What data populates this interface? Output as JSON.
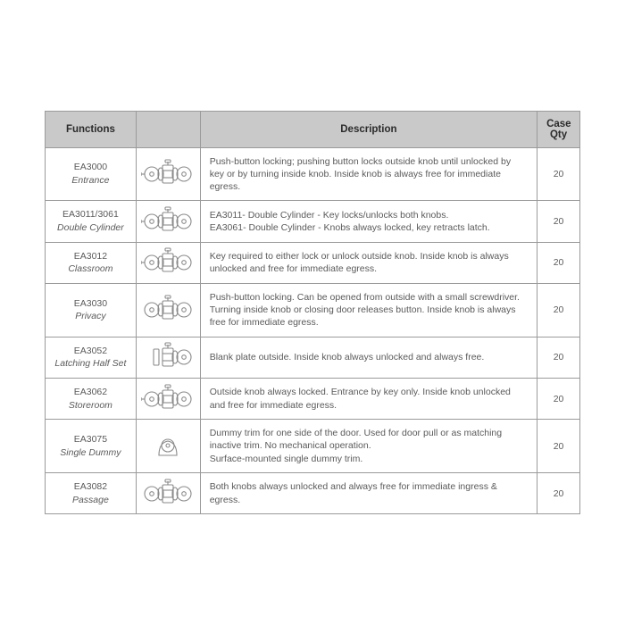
{
  "table": {
    "columns": [
      "Functions",
      "",
      "Description",
      "Case Qty"
    ],
    "col_widths_pct": [
      17,
      12,
      63,
      8
    ],
    "header_bg": "#c9c9c9",
    "header_color": "#2b2b2b",
    "header_fontsize": 11.5,
    "border_color": "#9a9a9a",
    "cell_color": "#5a5a5a",
    "cell_fontsize": 10.5,
    "icon_stroke": "#8a8a8a",
    "rows": [
      {
        "code": "EA3000",
        "name": "Entrance",
        "icon": "double-key",
        "desc": "Push-button locking; pushing button locks outside knob until unlocked by key or by turning inside knob. Inside knob is always free for immediate egress.",
        "qty": "20"
      },
      {
        "code": "EA3011/3061",
        "name": "Double Cylinder",
        "icon": "double-key",
        "desc": "EA3011- Double Cylinder - Key locks/unlocks both knobs.\nEA3061- Double Cylinder - Knobs always locked, key retracts latch.",
        "qty": "20"
      },
      {
        "code": "EA3012",
        "name": "Classroom",
        "icon": "double-key",
        "desc": "Key required to either lock or unlock outside knob. Inside knob is always unlocked and free for immediate egress.",
        "qty": "20"
      },
      {
        "code": "EA3030",
        "name": "Privacy",
        "icon": "double",
        "desc": "Push-button locking. Can be opened from outside with a small screwdriver. Turning inside knob or closing door releases button. Inside knob is always free for immediate egress.",
        "qty": "20"
      },
      {
        "code": "EA3052",
        "name": "Latching Half Set",
        "icon": "half",
        "desc": "Blank plate outside. Inside knob always unlocked and always free.",
        "qty": "20"
      },
      {
        "code": "EA3062",
        "name": "Storeroom",
        "icon": "double-key",
        "desc": "Outside knob always locked. Entrance by key only. Inside knob unlocked and free for immediate egress.",
        "qty": "20"
      },
      {
        "code": "EA3075",
        "name": "Single Dummy",
        "icon": "single",
        "desc": "Dummy trim for one side of the door. Used for door pull or as matching inactive trim. No mechanical operation.\nSurface-mounted single dummy trim.",
        "qty": "20"
      },
      {
        "code": "EA3082",
        "name": "Passage",
        "icon": "double",
        "desc": "Both knobs always unlocked and always free for immediate ingress & egress.",
        "qty": "20"
      }
    ]
  }
}
